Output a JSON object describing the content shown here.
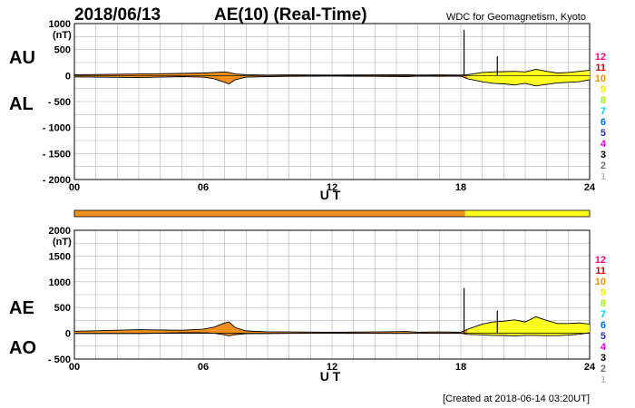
{
  "header": {
    "date": "2018/06/13",
    "title": "AE(10) (Real-Time)",
    "organization": "WDC for Geomagnetism, Kyoto"
  },
  "footer": {
    "created": "[Created at 2018-06-14 03:20UT]"
  },
  "colors": {
    "fill_orange": "#f0901e",
    "fill_yellow": "#ffff1e",
    "grid": "#b4b4b4",
    "trace": "#000000"
  },
  "legend": {
    "levels": [
      {
        "label": "12",
        "color": "#ff0080"
      },
      {
        "label": "11",
        "color": "#e00000"
      },
      {
        "label": "10",
        "color": "#f09000"
      },
      {
        "label": "9",
        "color": "#f0f000"
      },
      {
        "label": "8",
        "color": "#a0f000"
      },
      {
        "label": "7",
        "color": "#00d0f0"
      },
      {
        "label": "6",
        "color": "#0070f0"
      },
      {
        "label": "5",
        "color": "#3030c0"
      },
      {
        "label": "4",
        "color": "#e000e0"
      },
      {
        "label": "3",
        "color": "#000000"
      },
      {
        "label": "2",
        "color": "#707070"
      },
      {
        "label": "1",
        "color": "#c0c0c0"
      }
    ]
  },
  "coverage_bar": {
    "segments": [
      {
        "from": 0,
        "to": 18.2,
        "level": "10"
      },
      {
        "from": 18.2,
        "to": 24,
        "level": "9"
      }
    ]
  },
  "chart_data": [
    {
      "type": "area",
      "name": "AU/AL",
      "unit": "(nT)",
      "upper_label": "AU",
      "lower_label": "AL",
      "xlabel": "U T",
      "xlim": [
        0,
        24
      ],
      "ylim": [
        -2000,
        1000
      ],
      "xticks": [
        "00",
        "06",
        "12",
        "18",
        "24"
      ],
      "yticks": [
        "1000",
        "500",
        "0",
        "- 500",
        "- 1000",
        "- 1500",
        "- 2000"
      ],
      "grid": true,
      "x": [
        0,
        1,
        2,
        3,
        4,
        5,
        6,
        6.5,
        7,
        7.2,
        7.5,
        8,
        9,
        10,
        12,
        14,
        15.5,
        16,
        17,
        18,
        18.3,
        19,
        19.5,
        20,
        20.5,
        21,
        21.5,
        22,
        22.5,
        23,
        23.5,
        24
      ],
      "upper": [
        15,
        20,
        25,
        30,
        35,
        40,
        50,
        60,
        70,
        60,
        30,
        15,
        10,
        12,
        10,
        12,
        15,
        10,
        12,
        10,
        15,
        60,
        70,
        75,
        80,
        70,
        120,
        80,
        50,
        60,
        80,
        100
      ],
      "lower": [
        -25,
        -30,
        -35,
        -40,
        -30,
        -20,
        -30,
        -60,
        -130,
        -160,
        -80,
        -30,
        -20,
        -15,
        -10,
        -15,
        -20,
        -10,
        -15,
        -10,
        -60,
        -120,
        -150,
        -160,
        -180,
        -150,
        -200,
        -170,
        -140,
        -130,
        -120,
        -80
      ],
      "spikes": [
        {
          "x": 18.15,
          "y": 880
        },
        {
          "x": 19.7,
          "y": 370
        }
      ],
      "regions": [
        {
          "from": 0,
          "to": 18.3,
          "level": "10"
        },
        {
          "from": 18.3,
          "to": 24,
          "level": "9"
        }
      ]
    },
    {
      "type": "area",
      "name": "AE/AO",
      "unit": "(nT)",
      "upper_label": "AE",
      "lower_label": "AO",
      "xlabel": "U T",
      "xlim": [
        0,
        24
      ],
      "ylim": [
        -500,
        2000
      ],
      "xticks": [
        "00",
        "06",
        "12",
        "18",
        "24"
      ],
      "yticks": [
        "2000",
        "1500",
        "1000",
        "500",
        "0",
        "- 500"
      ],
      "grid": true,
      "x": [
        0,
        1,
        2,
        3,
        4,
        5,
        6,
        6.5,
        7,
        7.2,
        7.5,
        8,
        9,
        10,
        12,
        14,
        15.5,
        16,
        17,
        18,
        18.3,
        19,
        19.5,
        20,
        20.5,
        21,
        21.5,
        22,
        22.5,
        23,
        23.5,
        24
      ],
      "upper": [
        40,
        50,
        60,
        70,
        65,
        60,
        80,
        120,
        200,
        220,
        110,
        45,
        30,
        27,
        20,
        27,
        35,
        20,
        27,
        20,
        75,
        180,
        220,
        235,
        260,
        220,
        320,
        250,
        190,
        190,
        200,
        180
      ],
      "lower": [
        -5,
        -5,
        -5,
        -5,
        2,
        10,
        10,
        0,
        -30,
        -50,
        -25,
        -7,
        -5,
        -2,
        0,
        -2,
        -3,
        0,
        -2,
        0,
        -22,
        -30,
        -40,
        -42,
        -50,
        -40,
        -40,
        -45,
        -45,
        -35,
        -20,
        10
      ],
      "spikes": [
        {
          "x": 18.15,
          "y": 880
        },
        {
          "x": 19.7,
          "y": 440
        }
      ],
      "regions": [
        {
          "from": 0,
          "to": 18.3,
          "level": "10"
        },
        {
          "from": 18.3,
          "to": 24,
          "level": "9"
        }
      ]
    }
  ]
}
